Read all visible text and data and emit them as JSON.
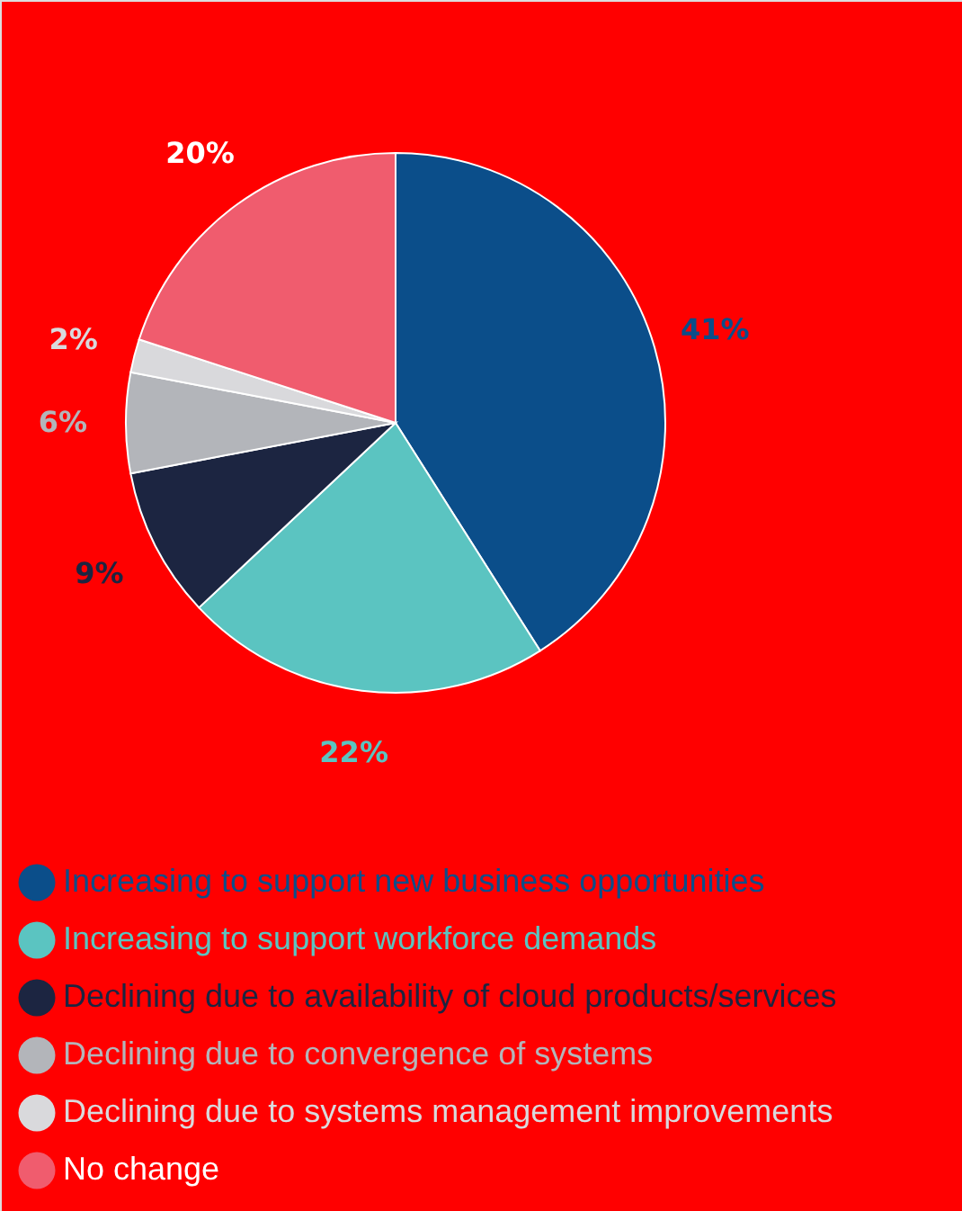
{
  "chart_data": {
    "type": "pie",
    "categories": [
      "Increasing to support new business opportunities",
      "Increasing to support workforce demands",
      "Declining due to availability of cloud products/services",
      "Declining due to convergence of systems",
      "Declining due to systems management improvements",
      "No change"
    ],
    "values": [
      41,
      22,
      9,
      6,
      2,
      20
    ],
    "colors": [
      "#0b4e8a",
      "#5bc4c1",
      "#1c2541",
      "#b3b5ba",
      "#d9d9dc",
      "#f05c6e"
    ],
    "value_labels": [
      "41%",
      "22%",
      "9%",
      "6%",
      "2%",
      "20%"
    ],
    "legend": "bottom"
  }
}
